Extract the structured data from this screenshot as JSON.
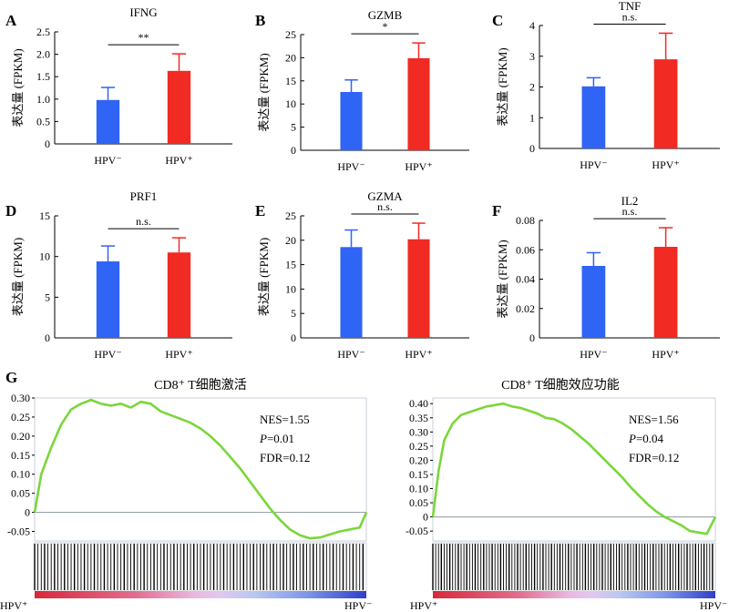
{
  "figure": {
    "panel_letters": [
      "A",
      "B",
      "C",
      "D",
      "E",
      "F",
      "G"
    ]
  },
  "colors": {
    "hpv_neg": "#2f64f5",
    "hpv_pos": "#f12a24",
    "gsea_line": "#7bd63a",
    "axis": "#000000",
    "gsea_frame": "#c8d2d8"
  },
  "chart_data": [
    {
      "type": "bar",
      "panel": "A",
      "title": "IFNG",
      "categories": [
        "HPV⁻",
        "HPV⁺"
      ],
      "values": [
        0.98,
        1.63
      ],
      "errors": [
        0.28,
        0.38
      ],
      "ylabel": "表达量 (FPKM)",
      "ylim": [
        0,
        2.5
      ],
      "yticks": [
        0,
        0.5,
        1.0,
        1.5,
        2.0,
        2.5
      ],
      "yticklabels": [
        "0",
        "0.5",
        "1.0",
        "1.5",
        "2.0",
        "2.5"
      ],
      "significance": "**",
      "grid": false
    },
    {
      "type": "bar",
      "panel": "B",
      "title": "GZMB",
      "categories": [
        "HPV⁻",
        "HPV⁺"
      ],
      "values": [
        12.6,
        19.9
      ],
      "errors": [
        2.6,
        3.3
      ],
      "ylabel": "表达量 (FPKM)",
      "ylim": [
        0,
        25
      ],
      "yticks": [
        0,
        5,
        10,
        15,
        20,
        25
      ],
      "yticklabels": [
        "0",
        "5",
        "10",
        "15",
        "20",
        "25"
      ],
      "significance": "*",
      "grid": false
    },
    {
      "type": "bar",
      "panel": "C",
      "title": "TNF",
      "categories": [
        "HPV⁻",
        "HPV⁺"
      ],
      "values": [
        2.02,
        2.9
      ],
      "errors": [
        0.28,
        0.85
      ],
      "ylabel": "表达量 (FPKM)",
      "ylim": [
        0,
        4
      ],
      "yticks": [
        0,
        1,
        2,
        3,
        4
      ],
      "yticklabels": [
        "0",
        "1",
        "2",
        "3",
        "4"
      ],
      "significance": "n.s.",
      "grid": false
    },
    {
      "type": "bar",
      "panel": "D",
      "title": "PRF1",
      "categories": [
        "HPV⁻",
        "HPV⁺"
      ],
      "values": [
        9.4,
        10.5
      ],
      "errors": [
        1.9,
        1.8
      ],
      "ylabel": "表达量 (FPKM)",
      "ylim": [
        0,
        15
      ],
      "yticks": [
        0,
        5,
        10,
        15
      ],
      "yticklabels": [
        "0",
        "5",
        "10",
        "15"
      ],
      "significance": "n.s.",
      "grid": false
    },
    {
      "type": "bar",
      "panel": "E",
      "title": "GZMA",
      "categories": [
        "HPV⁻",
        "HPV⁺"
      ],
      "values": [
        18.6,
        20.2
      ],
      "errors": [
        3.5,
        3.3
      ],
      "ylabel": "表达量 (FPKM)",
      "ylim": [
        0,
        25
      ],
      "yticks": [
        0,
        5,
        10,
        15,
        20,
        25
      ],
      "yticklabels": [
        "0",
        "5",
        "10",
        "15",
        "20",
        "25"
      ],
      "significance": "n.s.",
      "grid": false
    },
    {
      "type": "bar",
      "panel": "F",
      "title": "IL2",
      "categories": [
        "HPV⁻",
        "HPV⁺"
      ],
      "values": [
        0.049,
        0.062
      ],
      "errors": [
        0.009,
        0.013
      ],
      "ylabel": "表达量 (FPKM)",
      "ylim": [
        0,
        0.08
      ],
      "yticks": [
        0,
        0.02,
        0.04,
        0.06,
        0.08
      ],
      "yticklabels": [
        "0",
        "0.02",
        "0.04",
        "0.06",
        "0.08"
      ],
      "significance": "n.s.",
      "grid": false
    },
    {
      "type": "line",
      "panel": "G",
      "title": "CD8⁺ T细胞激活",
      "ylim": [
        -0.075,
        0.3
      ],
      "yticks": [
        -0.05,
        0,
        0.05,
        0.1,
        0.15,
        0.2,
        0.25,
        0.3
      ],
      "yticklabels": [
        "-0.05",
        "0",
        "0.05",
        "0.10",
        "0.15",
        "0.20",
        "0.25",
        "0.30"
      ],
      "xlim": [
        0,
        1
      ],
      "x": [
        0,
        0.02,
        0.05,
        0.08,
        0.11,
        0.14,
        0.17,
        0.2,
        0.23,
        0.26,
        0.29,
        0.32,
        0.35,
        0.38,
        0.41,
        0.44,
        0.47,
        0.5,
        0.53,
        0.56,
        0.59,
        0.62,
        0.65,
        0.68,
        0.71,
        0.74,
        0.77,
        0.8,
        0.83,
        0.86,
        0.89,
        0.92,
        0.95,
        0.98,
        1.0
      ],
      "y": [
        0,
        0.1,
        0.17,
        0.23,
        0.27,
        0.285,
        0.295,
        0.285,
        0.28,
        0.285,
        0.275,
        0.29,
        0.285,
        0.265,
        0.255,
        0.245,
        0.235,
        0.22,
        0.2,
        0.175,
        0.145,
        0.115,
        0.08,
        0.045,
        0.01,
        -0.02,
        -0.045,
        -0.06,
        -0.068,
        -0.066,
        -0.058,
        -0.05,
        -0.045,
        -0.04,
        0
      ],
      "stats": {
        "nes": "NES=1.55",
        "p_label": "P",
        "p_value": "=0.01",
        "fdr": "FDR=0.12"
      },
      "left_group": "HPV⁺",
      "right_group": "HPV⁻",
      "hits": [
        0.0,
        0.01,
        0.02,
        0.03,
        0.04,
        0.05,
        0.06,
        0.07,
        0.08,
        0.09,
        0.1,
        0.11,
        0.12,
        0.13,
        0.14,
        0.15,
        0.16,
        0.17,
        0.18,
        0.19,
        0.2,
        0.21,
        0.22,
        0.23,
        0.24,
        0.25,
        0.26,
        0.27,
        0.28,
        0.29,
        0.3,
        0.31,
        0.32,
        0.33,
        0.34,
        0.35,
        0.36,
        0.37,
        0.38,
        0.39,
        0.4,
        0.41,
        0.42,
        0.43,
        0.44,
        0.45,
        0.46,
        0.47,
        0.48,
        0.49,
        0.5,
        0.51,
        0.52,
        0.53,
        0.54,
        0.55,
        0.56,
        0.57,
        0.58,
        0.59,
        0.6,
        0.61,
        0.62,
        0.63,
        0.64,
        0.65,
        0.66,
        0.67,
        0.68,
        0.69,
        0.7,
        0.71,
        0.72,
        0.73,
        0.74,
        0.75,
        0.76,
        0.77,
        0.78,
        0.79,
        0.8,
        0.81,
        0.82,
        0.83,
        0.84,
        0.85,
        0.86,
        0.87,
        0.88,
        0.89,
        0.9,
        0.91,
        0.92,
        0.93,
        0.94,
        0.95,
        0.96,
        0.97,
        0.98,
        0.99
      ]
    },
    {
      "type": "line",
      "panel": "G",
      "title": "CD8⁺ T细胞效应功能",
      "ylim": [
        -0.085,
        0.42
      ],
      "yticks": [
        -0.05,
        0,
        0.05,
        0.1,
        0.15,
        0.2,
        0.25,
        0.3,
        0.35,
        0.4
      ],
      "yticklabels": [
        "-0.05",
        "0",
        "0.05",
        "0.10",
        "0.15",
        "0.20",
        "0.25",
        "0.30",
        "0.35",
        "0.40"
      ],
      "xlim": [
        0,
        1
      ],
      "x": [
        0,
        0.02,
        0.04,
        0.07,
        0.1,
        0.13,
        0.16,
        0.19,
        0.22,
        0.25,
        0.28,
        0.31,
        0.34,
        0.37,
        0.4,
        0.43,
        0.46,
        0.49,
        0.52,
        0.55,
        0.58,
        0.61,
        0.64,
        0.67,
        0.7,
        0.73,
        0.76,
        0.79,
        0.82,
        0.85,
        0.88,
        0.91,
        0.94,
        0.97,
        1.0
      ],
      "y": [
        0,
        0.16,
        0.27,
        0.33,
        0.36,
        0.37,
        0.38,
        0.39,
        0.395,
        0.4,
        0.39,
        0.385,
        0.375,
        0.365,
        0.35,
        0.345,
        0.33,
        0.31,
        0.285,
        0.26,
        0.23,
        0.2,
        0.17,
        0.14,
        0.105,
        0.075,
        0.045,
        0.02,
        0.0,
        -0.015,
        -0.03,
        -0.05,
        -0.055,
        -0.06,
        0
      ],
      "stats": {
        "nes": "NES=1.56",
        "p_label": "P",
        "p_value": "=0.04",
        "fdr": "FDR=0.12"
      },
      "left_group": "HPV⁺",
      "right_group": "HPV⁻",
      "hits": [
        0.0,
        0.01,
        0.02,
        0.03,
        0.04,
        0.05,
        0.06,
        0.07,
        0.08,
        0.09,
        0.1,
        0.11,
        0.12,
        0.13,
        0.14,
        0.15,
        0.16,
        0.17,
        0.18,
        0.19,
        0.2,
        0.21,
        0.22,
        0.23,
        0.24,
        0.25,
        0.26,
        0.27,
        0.28,
        0.29,
        0.3,
        0.31,
        0.32,
        0.33,
        0.34,
        0.35,
        0.36,
        0.37,
        0.38,
        0.39,
        0.4,
        0.41,
        0.42,
        0.43,
        0.44,
        0.45,
        0.46,
        0.47,
        0.48,
        0.49,
        0.5,
        0.51,
        0.52,
        0.53,
        0.54,
        0.55,
        0.56,
        0.57,
        0.58,
        0.59,
        0.6,
        0.61,
        0.62,
        0.63,
        0.64,
        0.65,
        0.66,
        0.67,
        0.68,
        0.69,
        0.7,
        0.71,
        0.72,
        0.73,
        0.74,
        0.75,
        0.76,
        0.77,
        0.78,
        0.79,
        0.8,
        0.81,
        0.82,
        0.83,
        0.84,
        0.85,
        0.86,
        0.87,
        0.88,
        0.89,
        0.9,
        0.91,
        0.92,
        0.93,
        0.94,
        0.95,
        0.96,
        0.97,
        0.98,
        0.99
      ]
    }
  ]
}
